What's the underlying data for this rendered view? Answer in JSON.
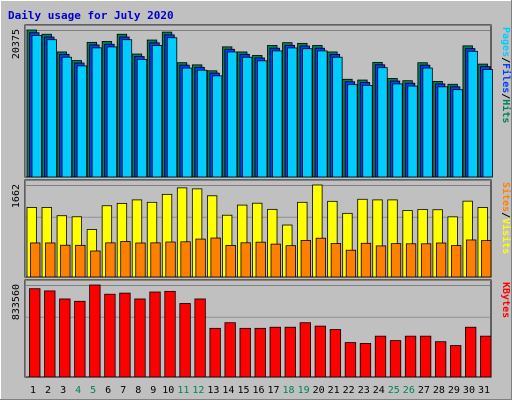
{
  "chart_data": {
    "type": "bar",
    "title": "Daily usage for July 2020",
    "colors": {
      "background": "#c0c0c0",
      "title": "#0000cc",
      "hits": "#00805c",
      "files": "#0040ff",
      "pages": "#00ccff",
      "visits": "#ffff00",
      "sites": "#ff8000",
      "kbytes": "#ff0000",
      "weekend_label": "#00805c",
      "weekday_label": "#000000"
    },
    "x": {
      "days": [
        "1",
        "2",
        "3",
        "4",
        "5",
        "6",
        "7",
        "8",
        "9",
        "10",
        "11",
        "12",
        "13",
        "14",
        "15",
        "16",
        "17",
        "18",
        "19",
        "20",
        "21",
        "22",
        "23",
        "24",
        "25",
        "26",
        "27",
        "28",
        "29",
        "30",
        "31"
      ],
      "weekend_days": [
        "4",
        "5",
        "11",
        "12",
        "18",
        "19",
        "25",
        "26"
      ]
    },
    "panels": [
      {
        "id": "requests",
        "ymax_label": "20375",
        "ylim": [
          0,
          20375
        ],
        "legend": [
          {
            "label": "Pages",
            "color": "#00ccff"
          },
          {
            "label": "/",
            "color": "#000000"
          },
          {
            "label": "Files",
            "color": "#0040ff"
          },
          {
            "label": "/",
            "color": "#000000"
          },
          {
            "label": "Hits",
            "color": "#00805c"
          }
        ],
        "series": [
          {
            "name": "Hits",
            "color": "#00805c",
            "values": [
              20375,
              19790,
              17335,
              16135,
              18665,
              18790,
              19790,
              17045,
              18985,
              20085,
              15845,
              15545,
              14720,
              18040,
              17335,
              16845,
              18230,
              18620,
              18525,
              18230,
              17335,
              13545,
              13440,
              15890,
              13655,
              13350,
              15840,
              13250,
              12855,
              18180,
              15650
            ]
          },
          {
            "name": "Files",
            "color": "#0040ff",
            "values": [
              20000,
              19400,
              17000,
              15800,
              18300,
              18400,
              19400,
              16700,
              18600,
              19700,
              15500,
              15200,
              14400,
              17700,
              17000,
              16500,
              17850,
              18250,
              18150,
              17850,
              17000,
              13200,
              13100,
              15550,
              13300,
              13000,
              15500,
              12900,
              12500,
              17800,
              15300
            ]
          },
          {
            "name": "Pages",
            "color": "#00ccff",
            "values": [
              19620,
              19030,
              16600,
              15400,
              17900,
              18030,
              19030,
              16300,
              18230,
              19300,
              15100,
              14800,
              14020,
              17330,
              16600,
              16100,
              17480,
              17890,
              17780,
              17480,
              16600,
              12800,
              12700,
              15150,
              12900,
              12600,
              15100,
              12500,
              12100,
              17420,
              14900
            ]
          }
        ]
      },
      {
        "id": "visits",
        "ymax_label": "1662",
        "ylim": [
          0,
          1662
        ],
        "legend": [
          {
            "label": "Sites",
            "color": "#ff8000"
          },
          {
            "label": "/",
            "color": "#000000"
          },
          {
            "label": "Visits",
            "color": "#ffff00"
          }
        ],
        "series": [
          {
            "name": "Visits",
            "color": "#ffff00",
            "values": [
              1256,
              1256,
              1107,
              1088,
              857,
              1287,
              1330,
              1393,
              1349,
              1493,
              1610,
              1592,
              1467,
              1116,
              1299,
              1333,
              1222,
              939,
              1349,
              1662,
              1367,
              1150,
              1404,
              1393,
              1393,
              1200,
              1221,
              1215,
              1087,
              1370,
              1255
            ]
          },
          {
            "name": "Sites",
            "color": "#ff8000",
            "values": [
              615,
              615,
              574,
              572,
              470,
              617,
              642,
              614,
              617,
              632,
              636,
              685,
              704,
              571,
              618,
              629,
              594,
              566,
              661,
              701,
              605,
              484,
              609,
              562,
              603,
              600,
              600,
              614,
              567,
              669,
              658
            ]
          }
        ]
      },
      {
        "id": "kbytes",
        "ymax_label": "833560",
        "ylim": [
          0,
          833560
        ],
        "legend": [
          {
            "label": "KBytes",
            "color": "#ff0000"
          }
        ],
        "series": [
          {
            "name": "KBytes",
            "color": "#ff0000",
            "values": [
              800000,
              780000,
              707000,
              686000,
              833560,
              750000,
              760000,
              707000,
              770000,
              776000,
              666000,
              707000,
              441000,
              492000,
              441000,
              441000,
              451000,
              451000,
              492000,
              461000,
              430000,
              312000,
              304000,
              370000,
              330000,
              370000,
              370000,
              320000,
              285000,
              451000,
              370000
            ]
          }
        ]
      }
    ]
  }
}
